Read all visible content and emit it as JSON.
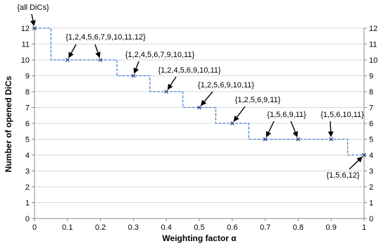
{
  "chart_data": {
    "type": "line",
    "xlabel": "Weighting factor α",
    "ylabel": "Number of opened DiCs",
    "xlim": [
      0,
      1
    ],
    "ylim": [
      0,
      12
    ],
    "x_ticks": [
      "0",
      "0.1",
      "0.2",
      "0.3",
      "0.4",
      "0.5",
      "0.6",
      "0.7",
      "0.8",
      "0.9",
      "1"
    ],
    "y_ticks": [
      "0",
      "1",
      "2",
      "3",
      "4",
      "5",
      "6",
      "7",
      "8",
      "9",
      "10",
      "11",
      "12"
    ],
    "grid": "horizontal",
    "line_color": "#4a7fd4",
    "line_style": "dashed",
    "marker": "x",
    "x": [
      0,
      0.1,
      0.2,
      0.3,
      0.4,
      0.5,
      0.6,
      0.7,
      0.8,
      0.9,
      1
    ],
    "values": [
      12,
      10,
      10,
      9,
      8,
      7,
      6,
      5,
      5,
      5,
      4
    ],
    "step_breaks": [
      0.05,
      0.25,
      0.35,
      0.45,
      0.55,
      0.65,
      0.95
    ],
    "annotations": [
      {
        "text": "{all DiCs}",
        "x": 0,
        "y": 12
      },
      {
        "text": "{1,2,4,5,6,7,9,10,11,12}",
        "x": 0.1,
        "y": 10
      },
      {
        "text": "{1,2,4,5,6,7,9,10,11,12}",
        "x": 0.2,
        "y": 10
      },
      {
        "text": "{1,2,4,5,6,7,9,10,11}",
        "x": 0.3,
        "y": 9
      },
      {
        "text": "{1,2,4,5,6,9,10,11}",
        "x": 0.4,
        "y": 8
      },
      {
        "text": "{1,2,5,6,9,10,11}",
        "x": 0.5,
        "y": 7
      },
      {
        "text": "{1,2,5,6,9,11}",
        "x": 0.6,
        "y": 6
      },
      {
        "text": "{1,5,6,9,11}",
        "x": 0.7,
        "y": 5
      },
      {
        "text": "{1,5,6,9,11}",
        "x": 0.8,
        "y": 5
      },
      {
        "text": "{1,5,6,10,11}",
        "x": 0.9,
        "y": 5
      },
      {
        "text": "{1,5,6,12}",
        "x": 1,
        "y": 4
      }
    ]
  }
}
